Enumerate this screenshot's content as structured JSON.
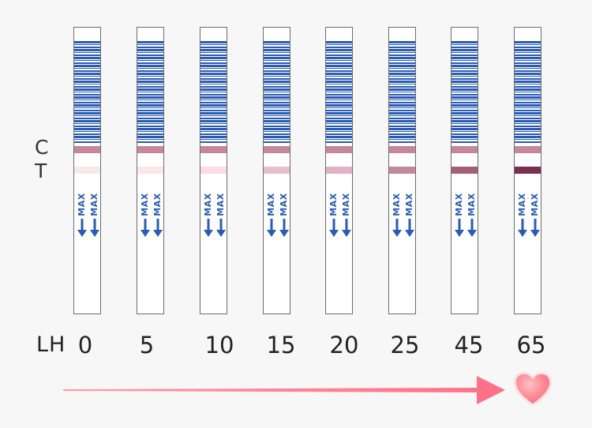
{
  "labels": {
    "c": "C",
    "t": "T",
    "lh": "LH"
  },
  "strip_max_text": "MAX",
  "colors": {
    "barcode": "#2a5bb5",
    "control_line": "#c48898",
    "arrow": "#ff7890",
    "heart": "#ff7e8c"
  },
  "icons": {
    "arrow": "arrow-right-icon",
    "heart": "heart-icon",
    "max_arrow": "arrow-down-icon"
  },
  "strips": [
    {
      "lh": "0",
      "t_color": "#f6e9ec"
    },
    {
      "lh": "5",
      "t_color": "#fce6ec"
    },
    {
      "lh": "10",
      "t_color": "#fadde6"
    },
    {
      "lh": "15",
      "t_color": "#e9bfcf"
    },
    {
      "lh": "20",
      "t_color": "#dfb2c7"
    },
    {
      "lh": "25",
      "t_color": "#c48898"
    },
    {
      "lh": "45",
      "t_color": "#a56078"
    },
    {
      "lh": "65",
      "t_color": "#7c3050"
    }
  ]
}
